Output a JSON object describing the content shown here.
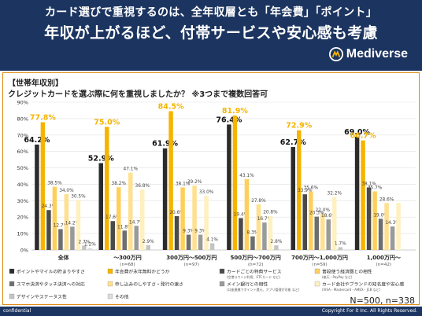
{
  "header": {
    "line1": "カード選びで重視するのは、全年収層とも「年会費」「ポイント」",
    "line2": "年収が上がるほど、付帯サービスや安心感も考慮",
    "brand": "Mediverse",
    "brand_icon": "m-logo-icon"
  },
  "footer": {
    "confidential": "confidential",
    "copyright": "Copyright For it Inc. All Rights Reserved."
  },
  "chart_data": {
    "type": "bar",
    "segment_label": "【世帯年収別】",
    "title": "クレジットカードを選ぶ際に何を重視しましたか？ ※3つまで複数回答可",
    "sample_note": "N=500, n=338",
    "ylim": [
      0,
      90
    ],
    "yticks": [
      "0%",
      "10%",
      "20%",
      "30%",
      "40%",
      "50%",
      "60%",
      "70%",
      "80%",
      "90%"
    ],
    "ytick_values": [
      0,
      10,
      20,
      30,
      40,
      50,
      60,
      70,
      80,
      90
    ],
    "grid": true,
    "categories": [
      {
        "label": "全体",
        "n": ""
      },
      {
        "label": "〜300万円",
        "n": "(n=68)"
      },
      {
        "label": "300万円〜500万円",
        "n": "(n=97)"
      },
      {
        "label": "500万円〜700万円",
        "n": "(n=72)"
      },
      {
        "label": "700万円〜1,000万円",
        "n": "(n=59)"
      },
      {
        "label": "1,000万円〜",
        "n": "(n=42)"
      }
    ],
    "series": [
      {
        "name": "ポイントやマイルの貯まりやすさ",
        "sub": "",
        "color": "#2b2b2b",
        "values": [
          64.2,
          52.9,
          61.9,
          76.4,
          62.7,
          69.0
        ],
        "labels": [
          "64.2%",
          "52.9%",
          "61.9%",
          "76.4%",
          "62.7%",
          "69.0%"
        ]
      },
      {
        "name": "年会費が永年無料かどうか",
        "sub": "",
        "color": "#f5b400",
        "values": [
          77.8,
          75.0,
          84.5,
          81.9,
          72.9,
          66.7
        ],
        "labels": [
          "77.8%",
          "75.0%",
          "84.5%",
          "81.9%",
          "72.9%",
          "66.7%"
        ]
      },
      {
        "name": "カードごとの特典サービス",
        "sub": "(空港ラウンジ利用、ETCカード など)",
        "color": "#4a4a4a",
        "values": [
          24.3,
          17.6,
          20.6,
          19.4,
          33.9,
          38.1
        ],
        "labels": [
          "24.3%",
          "17.6%",
          "20.6%",
          "19.4%",
          "33.9%",
          "38.1%"
        ]
      },
      {
        "name": "普段使う経済圏との相性",
        "sub": "(楽天・PayPay など)",
        "color": "#ffcf5c",
        "values": [
          38.5,
          38.2,
          38.1,
          43.1,
          35.6,
          35.7
        ],
        "labels": [
          "38.5%",
          "38.2%",
          "38.1%",
          "43.1%",
          "35.6%",
          "35.7%"
        ]
      },
      {
        "name": "スマホ決済やタッチ決済への対応",
        "sub": "",
        "color": "#6e6e6e",
        "values": [
          12.7,
          11.8,
          9.3,
          8.3,
          20.3,
          19.0
        ],
        "labels": [
          "12.7%",
          "11.8%",
          "9.3%",
          "8.3%",
          "20.3%",
          "19.0%"
        ]
      },
      {
        "name": "申し込みのしやすさ・発行の速さ",
        "sub": "",
        "color": "#ffe08f",
        "values": [
          34.0,
          47.1,
          39.2,
          27.8,
          22.0,
          28.6
        ],
        "labels": [
          "34.0%",
          "47.1%",
          "39.2%",
          "27.8%",
          "22.0%",
          "28.6%"
        ]
      },
      {
        "name": "メイン銀行との相性",
        "sub": "(口座連携でポイント還元、アプリ管理が可能 など)",
        "color": "#9a9a9a",
        "values": [
          14.2,
          14.7,
          9.3,
          16.7,
          18.6,
          14.3
        ],
        "labels": [
          "14.2%",
          "14.7%",
          "9.3%",
          "16.7%",
          "18.6%",
          "14.3%"
        ]
      },
      {
        "name": "カード会社やブランドの知名度や安心感",
        "sub": "(VISA・Mastercard・AMEX・JCB など)",
        "color": "#fff0c0",
        "values": [
          30.5,
          36.8,
          33.0,
          20.8,
          32.2,
          28.6
        ],
        "labels": [
          "30.5%",
          "36.8%",
          "33.0%",
          "20.8%",
          "32.2%",
          ""
        ]
      },
      {
        "name": "デザインやステータス性",
        "sub": "",
        "color": "#c4c4c4",
        "values": [
          2.7,
          2.9,
          4.1,
          2.8,
          1.7,
          0
        ],
        "labels": [
          "2.7%",
          "2.9%",
          "4.1%",
          "2.8%",
          "1.7%",
          ""
        ]
      },
      {
        "name": "その他",
        "sub": "",
        "color": "#dcdcdc",
        "values": [
          1.2,
          0,
          0,
          0,
          0,
          0
        ],
        "labels": [
          "1.2%",
          "",
          "",
          "",
          "",
          ""
        ]
      }
    ]
  }
}
